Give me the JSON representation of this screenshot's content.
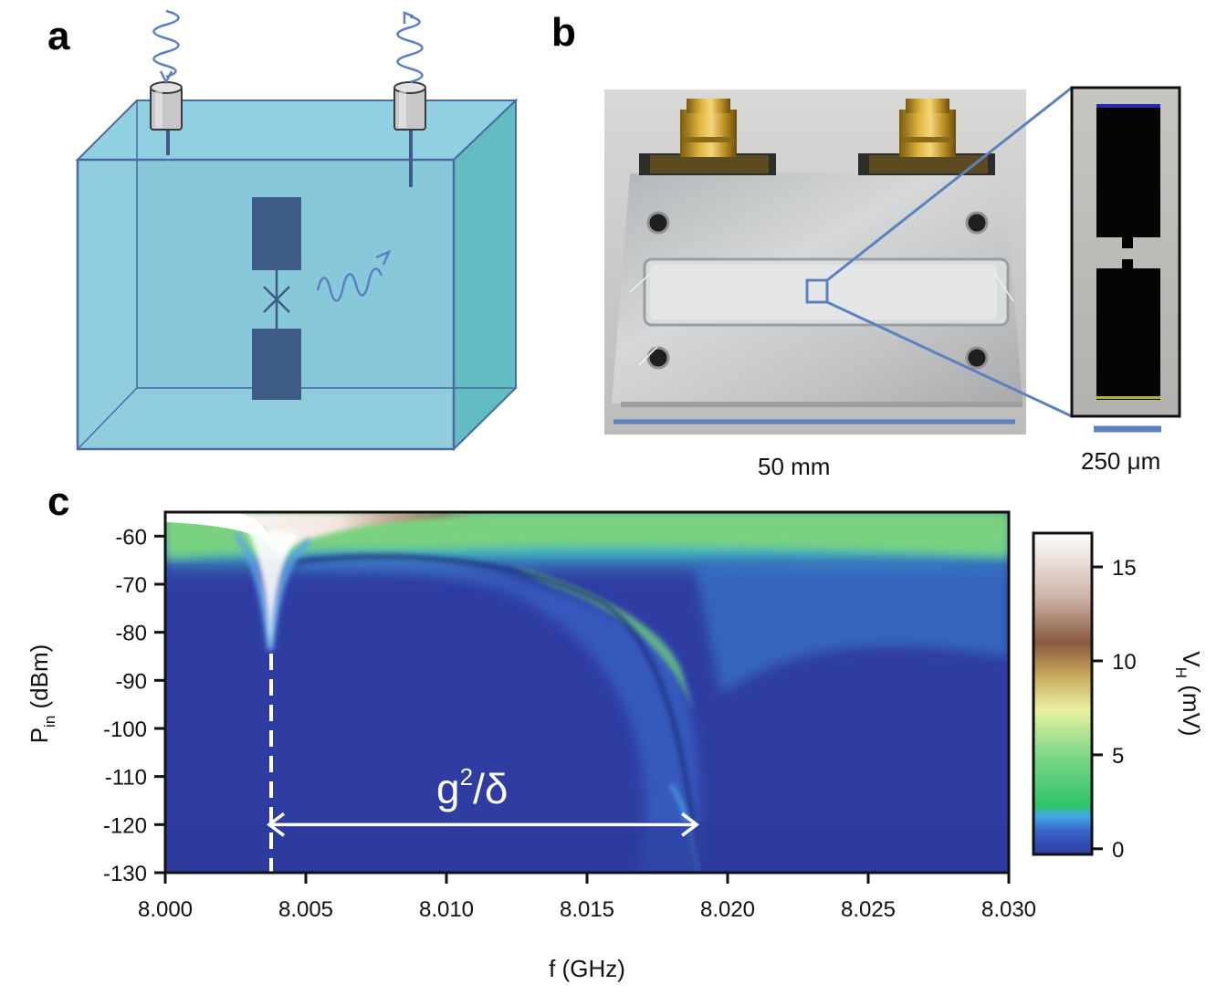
{
  "panels": {
    "a": {
      "label": "a"
    },
    "b": {
      "label": "b",
      "scale_main": "50 mm",
      "scale_inset": "250 μm"
    },
    "c": {
      "label": "c"
    }
  },
  "colors": {
    "cavity_front": "#87c9d9",
    "cavity_side": "#62bcc2",
    "cavity_edge": "#4a6aa0",
    "pad": "#3e5a86",
    "wave": "#5d7fc2",
    "heatmap_base": "#2e3c9f",
    "inset_frame": "#5b82be"
  },
  "chart_data": {
    "type": "heatmap",
    "xlabel": "f (GHz)",
    "ylabel_main": "P",
    "ylabel_sub": "in",
    "ylabel_unit": " (dBm)",
    "x_ticks": [
      "8.000",
      "8.005",
      "8.010",
      "8.015",
      "8.020",
      "8.025",
      "8.030"
    ],
    "x_tick_values": [
      8.0,
      8.005,
      8.01,
      8.015,
      8.02,
      8.025,
      8.03
    ],
    "y_ticks": [
      "-60",
      "-70",
      "-80",
      "-90",
      "-100",
      "-110",
      "-120",
      "-130"
    ],
    "y_tick_values": [
      -60,
      -70,
      -80,
      -90,
      -100,
      -110,
      -120,
      -130
    ],
    "xlim": [
      8.0,
      8.03
    ],
    "ylim": [
      -130,
      -55
    ],
    "colorbar": {
      "label_main": "V",
      "label_sub": "H",
      "label_unit": " (mV)",
      "ticks": [
        "0",
        "5",
        "10",
        "15"
      ],
      "tick_values": [
        0,
        5,
        10,
        15
      ],
      "range": [
        -0.3,
        16.8
      ]
    },
    "annotation": {
      "text_main": "g",
      "text_sup": "2",
      "text_rest": "/δ",
      "from_f": 8.0037,
      "to_f": 8.0189,
      "at_power": -120
    },
    "dashed_line_f": 8.0037,
    "dip_frequency": 8.0037,
    "high_power_resonance": 8.0037,
    "low_power_resonance": 8.0189
  }
}
